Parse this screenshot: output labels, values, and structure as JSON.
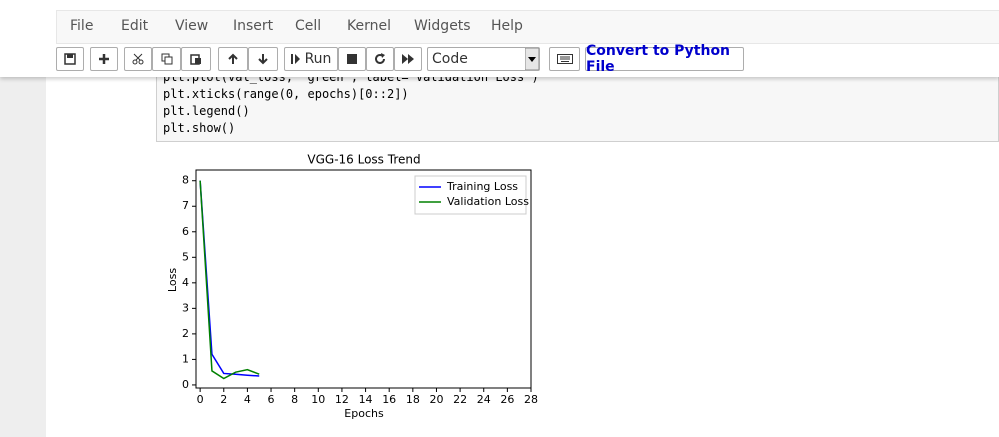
{
  "menu": [
    "File",
    "Edit",
    "View",
    "Insert",
    "Cell",
    "Kernel",
    "Widgets",
    "Help"
  ],
  "toolbar": {
    "run": "Run",
    "cell_type": "Code",
    "convert": "Convert to Python File"
  },
  "code": [
    "plt.plot(val_loss, 'green', label='Validation Loss')",
    "plt.xticks(range(0, epochs)[0::2])",
    "plt.legend()",
    "plt.show()"
  ],
  "chart_data": {
    "type": "line",
    "title": "VGG-16 Loss Trend",
    "x_label": "Epochs",
    "y_label": "Loss",
    "x": [
      0,
      1,
      2,
      3,
      4,
      5
    ],
    "series": [
      {
        "name": "Training Loss",
        "color": "#0000ff",
        "values": [
          8.0,
          1.2,
          0.45,
          0.42,
          0.38,
          0.35
        ]
      },
      {
        "name": "Validation Loss",
        "color": "#008000",
        "values": [
          8.0,
          0.55,
          0.25,
          0.5,
          0.6,
          0.42
        ]
      }
    ],
    "xlim": [
      -0.35,
      28
    ],
    "ylim": [
      -0.12,
      8.42
    ],
    "xticks": [
      0,
      2,
      4,
      6,
      8,
      10,
      12,
      14,
      16,
      18,
      20,
      22,
      24,
      26,
      28
    ],
    "yticks": [
      0,
      1,
      2,
      3,
      4,
      5,
      6,
      7,
      8
    ],
    "legend": "upper right",
    "grid": false
  }
}
